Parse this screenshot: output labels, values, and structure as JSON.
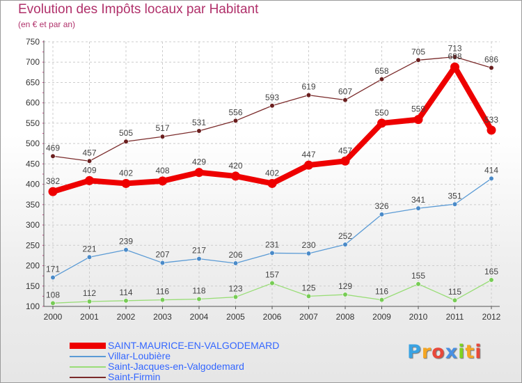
{
  "header": {
    "title": "Evolution des Impôts locaux par Habitant",
    "subtitle": "(en € et par an)"
  },
  "logo": {
    "text": "Proxiti",
    "letters": [
      "P",
      "r",
      "o",
      "x",
      "i",
      "t",
      "i"
    ],
    "colors": [
      "#3aa3e3",
      "#f5a623",
      "#e8483a",
      "#4a90e2",
      "#7ed321",
      "#f5a623",
      "#e8483a"
    ]
  },
  "colors": {
    "grid": "#cccccc",
    "axis": "#555555",
    "tick_label": "#333333",
    "frame_marks": "#d0408a"
  },
  "chart_data": {
    "type": "line",
    "x": [
      "2000",
      "2001",
      "2002",
      "2003",
      "2004",
      "2005",
      "2006",
      "2007",
      "2008",
      "2009",
      "2010",
      "2011",
      "2012"
    ],
    "ylim": [
      100,
      750
    ],
    "yticks": [
      100,
      150,
      200,
      250,
      300,
      350,
      400,
      450,
      500,
      550,
      600,
      650,
      700,
      750
    ],
    "grid": true,
    "legend_position": "bottom-left",
    "series": [
      {
        "name": "Saint-Firmin",
        "color": "#7a2a2a",
        "marker": "#6a1e1e",
        "values": [
          469,
          457,
          505,
          517,
          531,
          556,
          593,
          619,
          607,
          658,
          705,
          713,
          686
        ]
      },
      {
        "name": "Saint-Jacques-en-Valgodemard",
        "color": "#99dd77",
        "marker": "#77cc55",
        "values": [
          108,
          112,
          114,
          116,
          118,
          123,
          157,
          125,
          129,
          116,
          155,
          115,
          165
        ]
      },
      {
        "name": "Villar-Loubière",
        "color": "#5b9bd5",
        "marker": "#4a8ac8",
        "values": [
          171,
          221,
          239,
          207,
          217,
          206,
          231,
          230,
          252,
          326,
          341,
          351,
          414
        ]
      },
      {
        "name": "SAINT-MAURICE-EN-VALGODEMARD",
        "color": "#ee0000",
        "marker": "#ee0000",
        "values": [
          382,
          409,
          402,
          408,
          429,
          420,
          402,
          447,
          457,
          550,
          559,
          688,
          533
        ]
      }
    ],
    "legend_order": [
      "SAINT-MAURICE-EN-VALGODEMARD",
      "Villar-Loubière",
      "Saint-Jacques-en-Valgodemard",
      "Saint-Firmin"
    ]
  }
}
